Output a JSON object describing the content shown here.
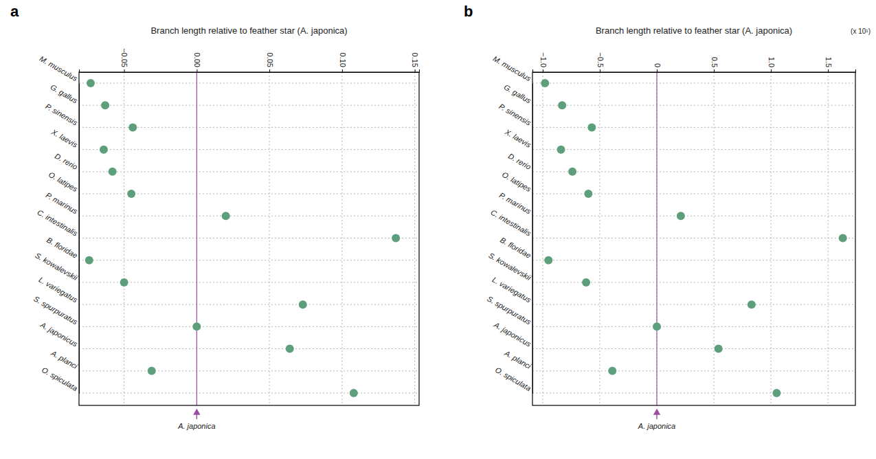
{
  "chart_data": [
    {
      "type": "scatter",
      "title": "a",
      "orientation": "horizontal",
      "xlabel": "Branch length relative to feather star (A. japonica)",
      "categories": [
        "M. musculus",
        "G. gallus",
        "P. sinensis",
        "X. laevis",
        "D. rerio",
        "O. latipes",
        "P. marinus",
        "C. intestinalis",
        "B. floridae",
        "S. kowalevskii",
        "L. variegatus",
        "S. spurpuratus",
        "A. japonicus",
        "A. planci",
        "O. spiculata"
      ],
      "values": [
        -0.073,
        -0.063,
        -0.044,
        -0.064,
        -0.058,
        -0.045,
        0.02,
        0.137,
        -0.074,
        -0.05,
        0.073,
        0.0,
        0.064,
        -0.031,
        0.108
      ],
      "color": "#5e9f7b",
      "marker": "circle",
      "xlim": [
        -0.081,
        0.153
      ],
      "xticks": [
        {
          "value": -0.05,
          "label": "−0.05"
        },
        {
          "value": 0,
          "label": "0.00"
        },
        {
          "value": 0.05,
          "label": "0.05"
        },
        {
          "value": 0.1,
          "label": "0.10"
        },
        {
          "value": 0.15,
          "label": "0.15"
        }
      ],
      "grid": true,
      "annotations": [
        {
          "text": "A. japonica",
          "x": 0
        }
      ]
    },
    {
      "type": "scatter",
      "title": "b",
      "orientation": "horizontal",
      "xlabel": "Branch length relative to feather star (A. japonica)",
      "categories": [
        "M. musculus",
        "G. gallus",
        "P. sinensis",
        "X. laevis",
        "D. rerio",
        "O. latipes",
        "P. marinus",
        "C. intestinalis",
        "B. floridae",
        "S. kowalevskii",
        "L. variegatus",
        "S. spurpuratus",
        "A. japonicus",
        "A. planci",
        "O. spiculata"
      ],
      "values": [
        -0.98,
        -0.83,
        -0.57,
        -0.84,
        -0.74,
        -0.6,
        0.21,
        1.63,
        -0.95,
        -0.62,
        0.83,
        0.0,
        0.54,
        -0.39,
        1.05
      ],
      "color": "#5e9f7b",
      "marker": "circle",
      "xlim": [
        -1.09,
        1.74
      ],
      "xticks": [
        {
          "value": -1,
          "label": "−1.0"
        },
        {
          "value": -0.5,
          "label": "−0.5"
        },
        0,
        0.5,
        {
          "value": 1,
          "label": "1.0"
        },
        1.5
      ],
      "grid": true,
      "annotations": [
        {
          "text": "A. japonica",
          "x": 0
        },
        {
          "text": "(x 10¹)"
        }
      ]
    }
  ]
}
